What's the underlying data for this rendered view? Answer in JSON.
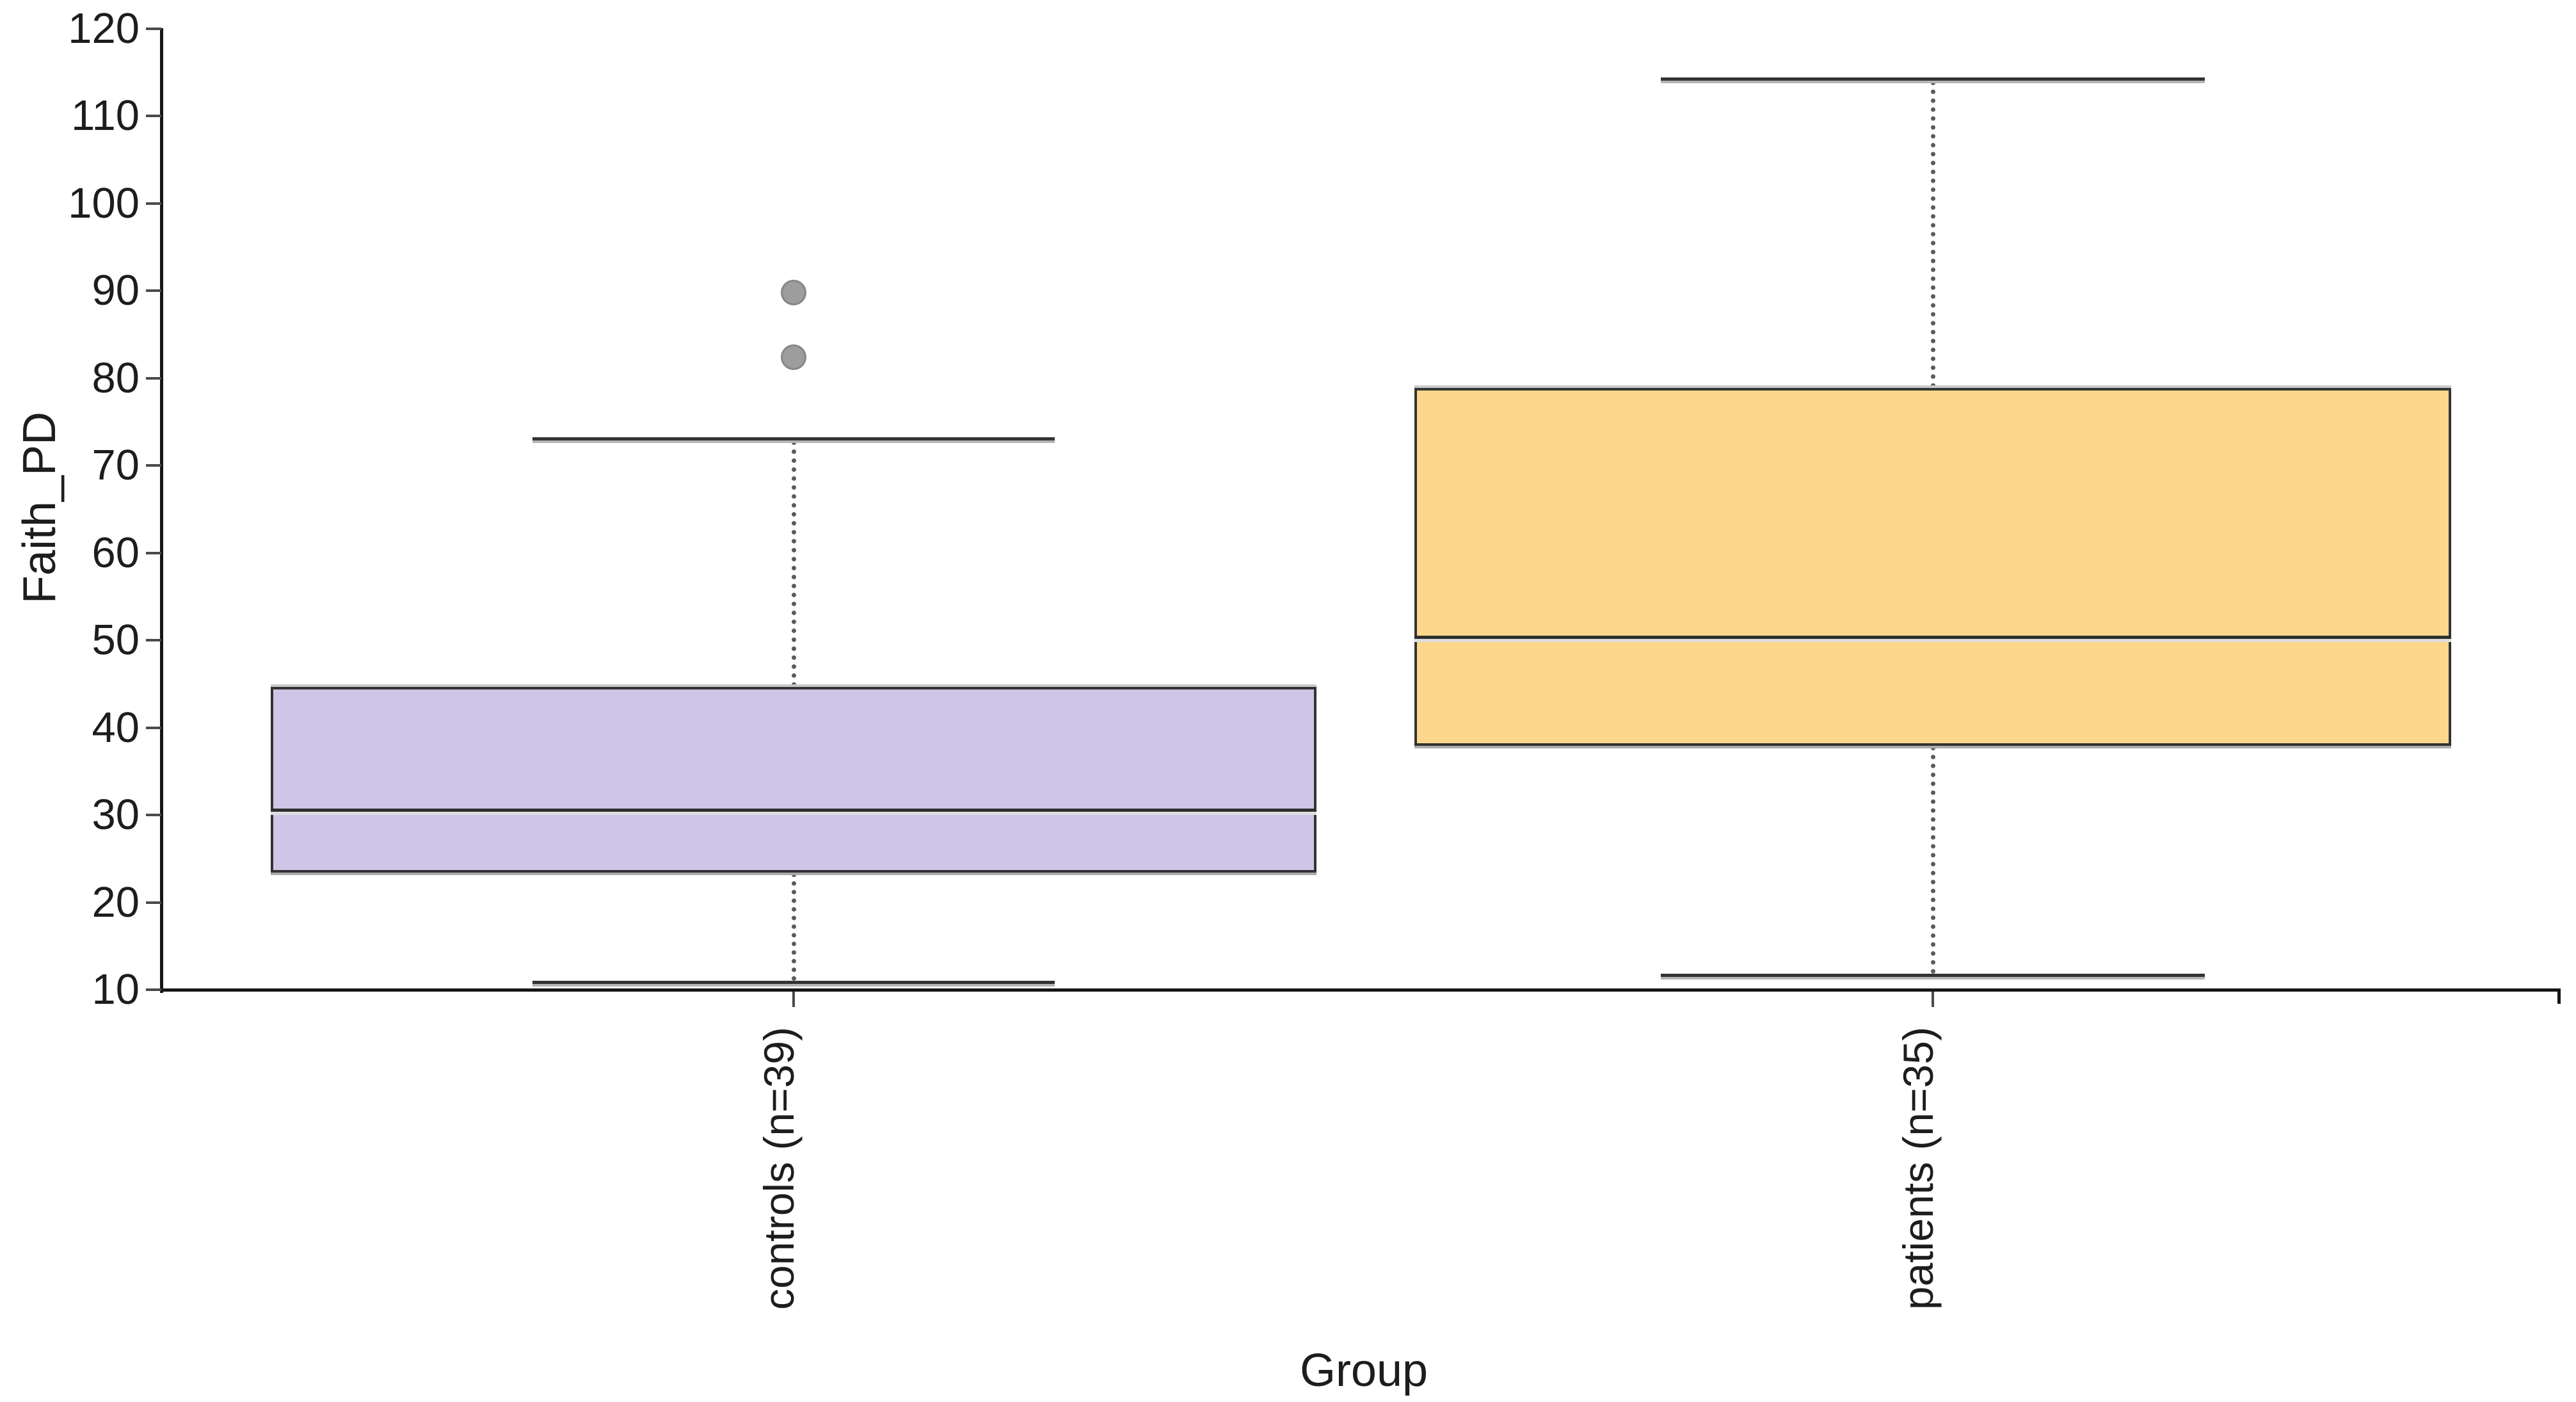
{
  "chart_data": {
    "type": "box",
    "title": "",
    "xlabel": "Group",
    "ylabel": "Faith_PD",
    "ylim": [
      10,
      120
    ],
    "y_ticks": [
      "10",
      "20",
      "30",
      "40",
      "50",
      "60",
      "70",
      "80",
      "90",
      "100",
      "110",
      "120"
    ],
    "grid": false,
    "legend": "none",
    "categories": [
      "controls (n=39)",
      "patients (n=35)"
    ],
    "series": [
      {
        "label": "controls (n=39)",
        "group": "controls",
        "n": 39,
        "whisker_low": 10.9,
        "q1": 23.4,
        "median": 30.6,
        "q3": 44.7,
        "whisker_high": 73.1,
        "outliers": [
          82.4,
          89.8
        ],
        "fill_color": "#cfc5e7"
      },
      {
        "label": "patients (n=35)",
        "group": "patients",
        "n": 35,
        "whisker_low": 11.7,
        "q1": 37.9,
        "median": 50.4,
        "q3": 78.9,
        "whisker_high": 114.3,
        "outliers": [],
        "fill_color": "#fdd78c"
      }
    ],
    "colors": {
      "box_border": "#333333",
      "median": "#2e2e2e",
      "whisker": "#5a5a5a",
      "outlier_fill": "#9d9d9d",
      "outlier_border": "#878787",
      "axis": "#161616",
      "tick": "#4a4a4a",
      "text": "#1d1d1f",
      "background": "#ffffff"
    }
  }
}
